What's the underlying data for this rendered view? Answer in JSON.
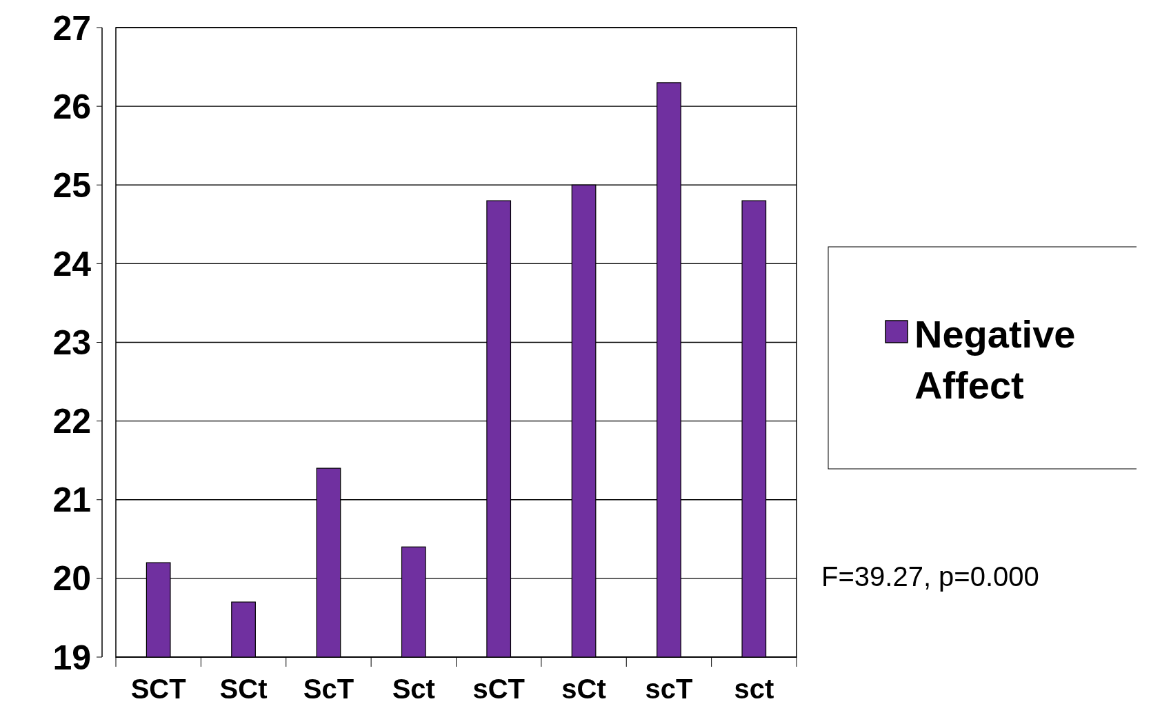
{
  "chart_data": {
    "type": "bar",
    "categories": [
      "SCT",
      "SCt",
      "ScT",
      "Sct",
      "sCT",
      "sCt",
      "scT",
      "sct"
    ],
    "series": [
      {
        "name": "Negative Affect",
        "color": "#7030a0",
        "values": [
          20.2,
          19.7,
          21.4,
          20.4,
          24.8,
          25.0,
          26.3,
          24.8
        ]
      }
    ],
    "ylim": [
      19,
      27
    ],
    "yticks": [
      19,
      20,
      21,
      22,
      23,
      24,
      25,
      26,
      27
    ],
    "grid": "y",
    "legend": "right",
    "annotations": [
      "F=39.27, p=0.000"
    ]
  }
}
